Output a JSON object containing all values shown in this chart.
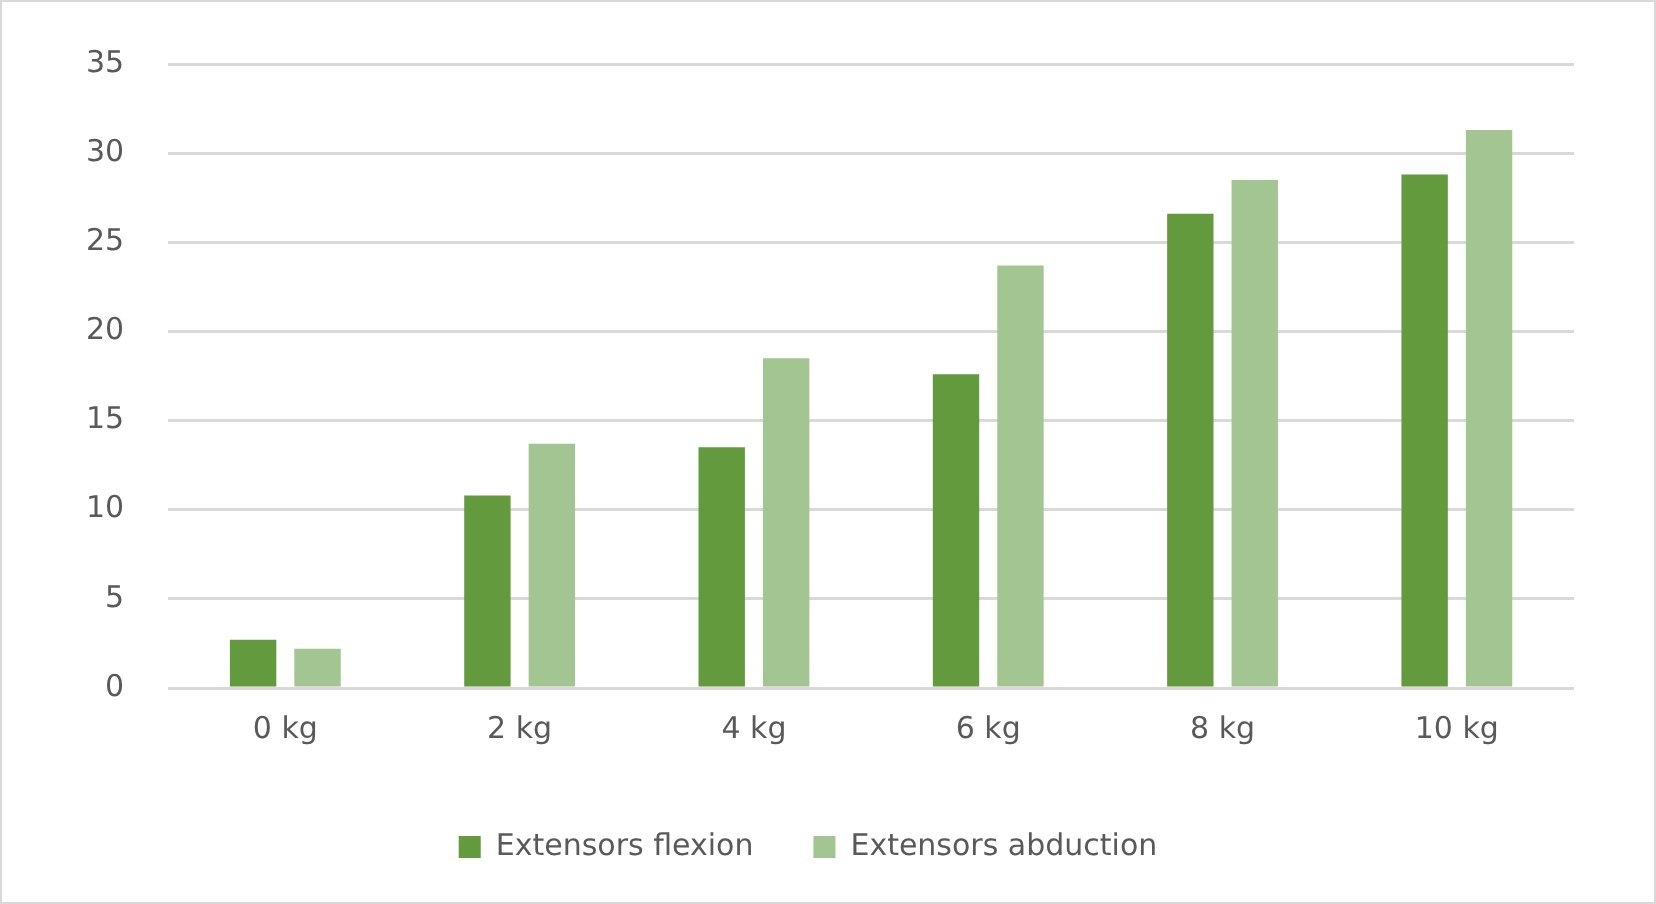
{
  "chart_data": {
    "type": "bar",
    "categories": [
      "0 kg",
      "2 kg",
      "4 kg",
      "6 kg",
      "8 kg",
      "10 kg"
    ],
    "series": [
      {
        "name": "Extensors flexion",
        "color": "#639a3e",
        "values": [
          2.7,
          10.8,
          13.5,
          17.6,
          26.6,
          28.8
        ]
      },
      {
        "name": "Extensors abduction",
        "color": "#a3c591",
        "values": [
          2.2,
          13.7,
          18.5,
          23.7,
          28.5,
          31.3
        ]
      }
    ],
    "ylim": [
      0,
      35
    ],
    "yticks": [
      0,
      5,
      10,
      15,
      20,
      25,
      30,
      35
    ],
    "grid": "y",
    "legend": "bottom"
  }
}
